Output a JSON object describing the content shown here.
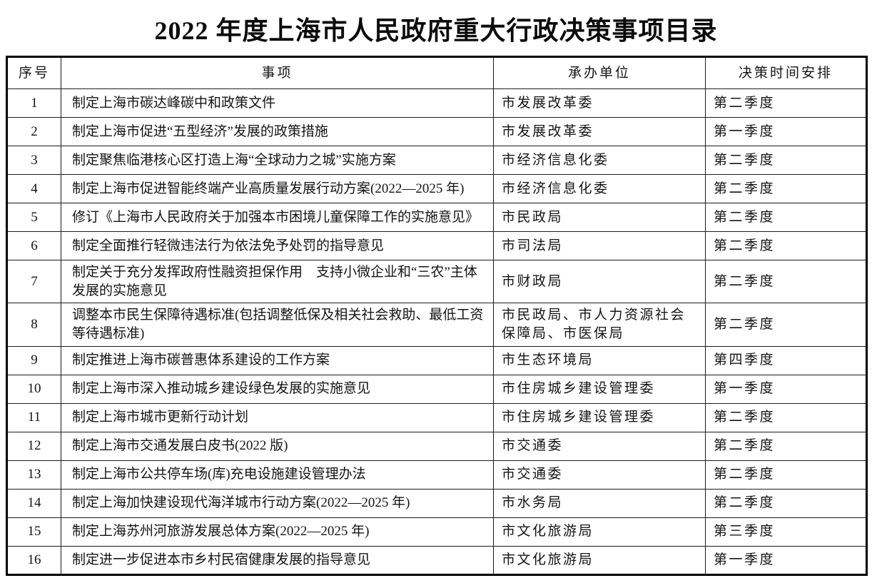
{
  "title": "2022 年度上海市人民政府重大行政决策事项目录",
  "table": {
    "headers": {
      "no": "序号",
      "item": "事项",
      "unit": "承办单位",
      "schedule": "决策时间安排"
    },
    "rows": [
      {
        "no": "1",
        "item": "制定上海市碳达峰碳中和政策文件",
        "unit": "市发展改革委",
        "schedule": "第二季度"
      },
      {
        "no": "2",
        "item": "制定上海市促进“五型经济”发展的政策措施",
        "unit": "市发展改革委",
        "schedule": "第一季度"
      },
      {
        "no": "3",
        "item": "制定聚焦临港核心区打造上海“全球动力之城”实施方案",
        "unit": "市经济信息化委",
        "schedule": "第二季度"
      },
      {
        "no": "4",
        "item": "制定上海市促进智能终端产业高质量发展行动方案(2022—2025 年)",
        "unit": "市经济信息化委",
        "schedule": "第二季度"
      },
      {
        "no": "5",
        "item": "修订《上海市人民政府关于加强本市困境儿童保障工作的实施意见》",
        "unit": "市民政局",
        "schedule": "第二季度"
      },
      {
        "no": "6",
        "item": "制定全面推行轻微违法行为依法免予处罚的指导意见",
        "unit": "市司法局",
        "schedule": "第二季度"
      },
      {
        "no": "7",
        "item": "制定关于充分发挥政府性融资担保作用　支持小微企业和“三农”主体发展的实施意见",
        "unit": "市财政局",
        "schedule": "第二季度"
      },
      {
        "no": "8",
        "item": "调整本市民生保障待遇标准(包括调整低保及相关社会救助、最低工资等待遇标准)",
        "unit": "市民政局、市人力资源社会保障局、市医保局",
        "schedule": "第二季度"
      },
      {
        "no": "9",
        "item": "制定推进上海市碳普惠体系建设的工作方案",
        "unit": "市生态环境局",
        "schedule": "第四季度"
      },
      {
        "no": "10",
        "item": "制定上海市深入推动城乡建设绿色发展的实施意见",
        "unit": "市住房城乡建设管理委",
        "schedule": "第一季度"
      },
      {
        "no": "11",
        "item": "制定上海市城市更新行动计划",
        "unit": "市住房城乡建设管理委",
        "schedule": "第二季度"
      },
      {
        "no": "12",
        "item": "制定上海市交通发展白皮书(2022 版)",
        "unit": "市交通委",
        "schedule": "第二季度"
      },
      {
        "no": "13",
        "item": "制定上海市公共停车场(库)充电设施建设管理办法",
        "unit": "市交通委",
        "schedule": "第二季度"
      },
      {
        "no": "14",
        "item": "制定上海加快建设现代海洋城市行动方案(2022—2025 年)",
        "unit": "市水务局",
        "schedule": "第二季度"
      },
      {
        "no": "15",
        "item": "制定上海苏州河旅游发展总体方案(2022—2025 年)",
        "unit": "市文化旅游局",
        "schedule": "第三季度"
      },
      {
        "no": "16",
        "item": "制定进一步促进本市乡村民宿健康发展的指导意见",
        "unit": "市文化旅游局",
        "schedule": "第一季度"
      }
    ]
  }
}
